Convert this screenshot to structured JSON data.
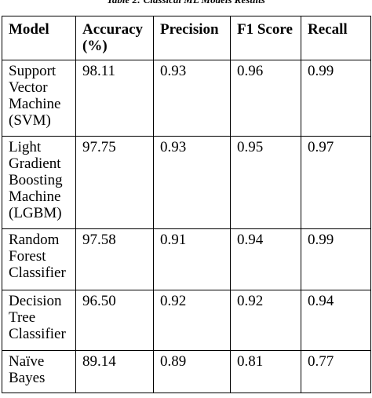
{
  "caption": "Table 2: Classical ML Models Results",
  "table": {
    "headers": [
      "Model",
      "Accuracy (%)",
      "Precision",
      "F1 Score",
      "Recall"
    ],
    "rows": [
      {
        "model": "Support Vector Machine (SVM)",
        "accuracy": "98.11",
        "precision": "0.93",
        "f1": "0.96",
        "recall": "0.99"
      },
      {
        "model": "Light Gradient Boosting Machine (LGBM)",
        "accuracy": "97.75",
        "precision": "0.93",
        "f1": "0.95",
        "recall": "0.97"
      },
      {
        "model": "Random Forest Classifier",
        "accuracy": "97.58",
        "precision": "0.91",
        "f1": "0.94",
        "recall": "0.99"
      },
      {
        "model": "Decision Tree Classifier",
        "accuracy": "96.50",
        "precision": "0.92",
        "f1": "0.92",
        "recall": "0.94"
      },
      {
        "model": "Naïve Bayes",
        "accuracy": "89.14",
        "precision": "0.89",
        "f1": "0.81",
        "recall": "0.77"
      }
    ]
  }
}
